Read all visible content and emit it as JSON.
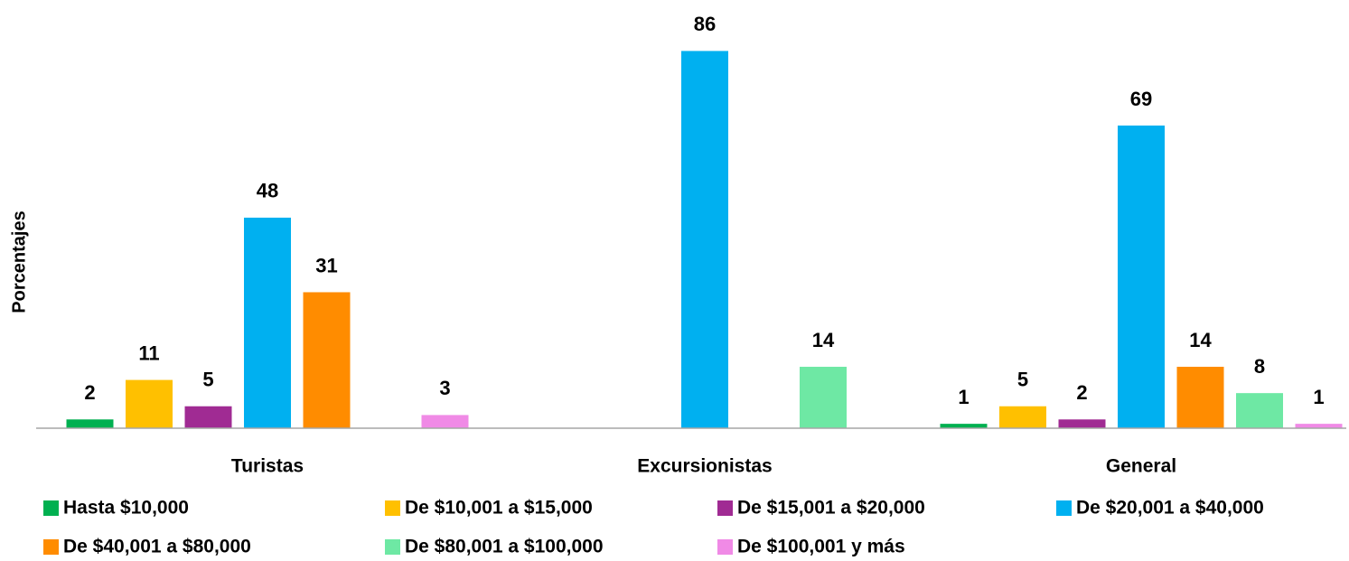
{
  "chart_data": {
    "type": "bar",
    "y_label": "Porcentajes",
    "categories": [
      "Turistas",
      "Excursionistas",
      "General"
    ],
    "series": [
      {
        "name": "Hasta $10,000",
        "color": "#00b050",
        "values": [
          2,
          0,
          1
        ]
      },
      {
        "name": "De $10,001 a $15,000",
        "color": "#ffc000",
        "values": [
          11,
          0,
          5
        ]
      },
      {
        "name": "De $15,001 a $20,000",
        "color": "#a02b93",
        "values": [
          5,
          0,
          2
        ]
      },
      {
        "name": "De $20,001 a $40,000",
        "color": "#00b0f0",
        "values": [
          48,
          86,
          69
        ]
      },
      {
        "name": "De $40,001 a $80,000",
        "color": "#ff8c00",
        "values": [
          31,
          0,
          14
        ]
      },
      {
        "name": "De $80,001 a $100,000",
        "color": "#6ee8a4",
        "values": [
          0,
          14,
          8
        ]
      },
      {
        "name": "De $100,001 y más",
        "color": "#f08ae6",
        "values": [
          3,
          0,
          1
        ]
      }
    ],
    "ylim": [
      0,
      90
    ]
  }
}
